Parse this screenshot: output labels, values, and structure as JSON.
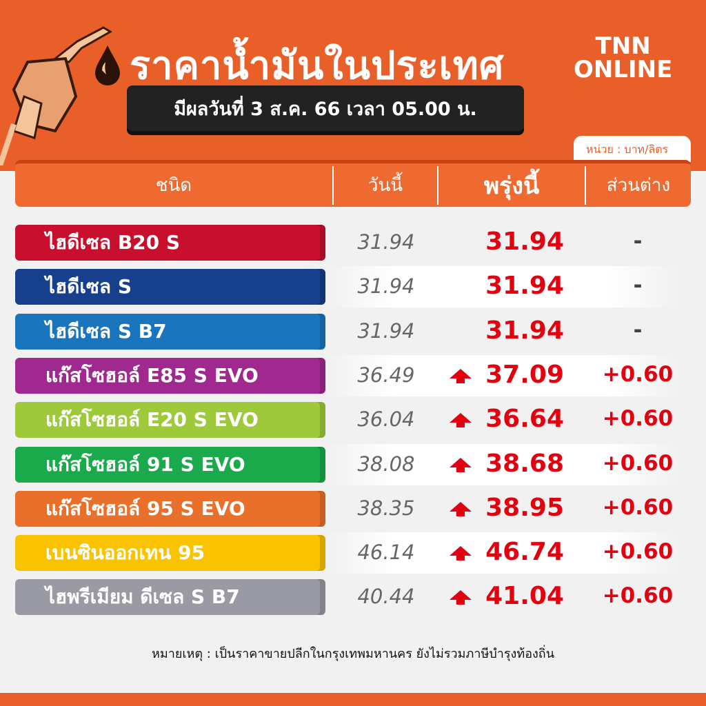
{
  "header": {
    "title": "ราคาน้ำมันในประเทศ",
    "logo_line1": "TNN",
    "logo_line2": "ONLINE",
    "effective": "มีผลวันที่ 3 ส.ค. 66 เวลา 05.00 น.",
    "unit": "หน่วย : บาท/ลิตร"
  },
  "table": {
    "columns": [
      "ชนิด",
      "วันนี้",
      "พรุ่งนี้",
      "ส่วนต่าง"
    ],
    "rows": [
      {
        "name": "ไฮดีเซล B20 S",
        "today": "31.94",
        "tomorrow": "31.94",
        "diff": "-",
        "up": false,
        "color": "#c8102e"
      },
      {
        "name": "ไฮดีเซล S",
        "today": "31.94",
        "tomorrow": "31.94",
        "diff": "-",
        "up": false,
        "color": "#163f8e"
      },
      {
        "name": "ไฮดีเซล S B7",
        "today": "31.94",
        "tomorrow": "31.94",
        "diff": "-",
        "up": false,
        "color": "#1b75bc"
      },
      {
        "name": "แก๊สโซฮอล์ E85 S EVO",
        "today": "36.49",
        "tomorrow": "37.09",
        "diff": "+0.60",
        "up": true,
        "color": "#a0298f"
      },
      {
        "name": "แก๊สโซฮอล์ E20 S EVO",
        "today": "36.04",
        "tomorrow": "36.64",
        "diff": "+0.60",
        "up": true,
        "color": "#9dc93b"
      },
      {
        "name": "แก๊สโซฮอล์ 91 S EVO",
        "today": "38.08",
        "tomorrow": "38.68",
        "diff": "+0.60",
        "up": true,
        "color": "#1aaa4b"
      },
      {
        "name": "แก๊สโซฮอล์ 95 S EVO",
        "today": "38.35",
        "tomorrow": "38.95",
        "diff": "+0.60",
        "up": true,
        "color": "#e8702a"
      },
      {
        "name": "เบนซินออกเทน 95",
        "today": "46.14",
        "tomorrow": "46.74",
        "diff": "+0.60",
        "up": true,
        "color": "#f9c300"
      },
      {
        "name": "ไฮพรีเมียม ดีเซล S B7",
        "today": "40.44",
        "tomorrow": "41.04",
        "diff": "+0.60",
        "up": true,
        "color": "#9a9aa5"
      }
    ]
  },
  "note": "หมายเหตุ : เป็นราคาขายปลีกในกรุงเทพมหานคร ยังไม่รวมภาษีบำรุงท้องถิ่น",
  "colors": {
    "brand": "#e95f29",
    "price_up": "#e3000f"
  }
}
